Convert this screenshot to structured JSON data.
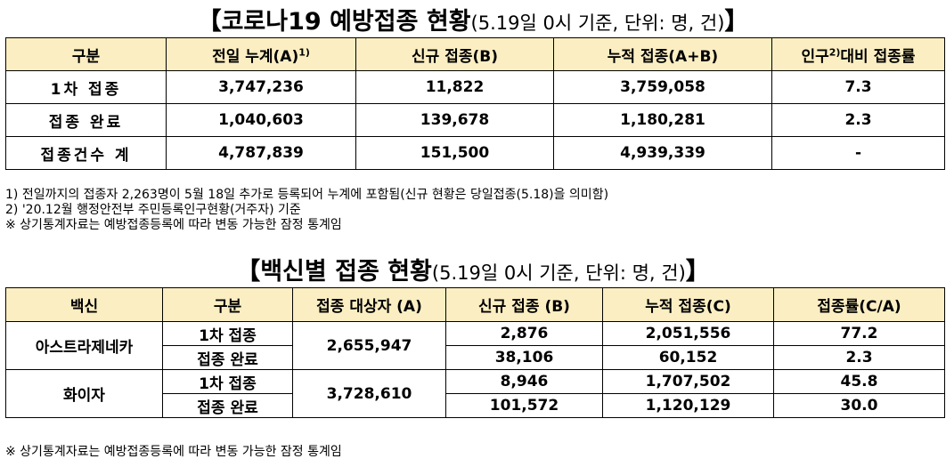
{
  "title1": {
    "main": "【코로나19 예방접종 현황",
    "sub": "(5.19일 0시 기준, 단위: 명, 건)",
    "end": "】"
  },
  "table1": {
    "headers": [
      "구분",
      "전일 누계(A)",
      "1)",
      "신규 접종(B)",
      "누적 접종(A+B)",
      "인구",
      "2)",
      "대비 접종률"
    ],
    "rows": [
      {
        "label": "1차 접종",
        "a": "3,747,236",
        "b": "11,822",
        "ab": "3,759,058",
        "rate": "7.3"
      },
      {
        "label": "접종 완료",
        "a": "1,040,603",
        "b": "139,678",
        "ab": "1,180,281",
        "rate": "2.3"
      },
      {
        "label": "접종건수 계",
        "a": "4,787,839",
        "b": "151,500",
        "ab": "4,939,339",
        "rate": "-"
      }
    ]
  },
  "notes": [
    "1) 전일까지의 접종자 2,263명이 5월 18일 추가로 등록되어 누계에 포함됨(신규 현황은 당일접종(5.18)을 의미함)",
    "2) '20.12월 행정안전부 주민등록인구현황(거주자) 기준",
    "※ 상기통계자료는 예방접종등록에 따라 변동 가능한 잠정 통계임"
  ],
  "title2": {
    "main": "【백신별 접종 현황",
    "sub": "(5.19일 0시 기준, 단위: 명, 건)",
    "end": "】"
  },
  "table2": {
    "headers": [
      "백신",
      "구분",
      "접종 대상자 (A)",
      "신규 접종 (B)",
      "누적 접종(C)",
      "접종률(C/A)"
    ],
    "vaccines": [
      {
        "name": "아스트라제네카",
        "target": "2,655,947",
        "rows": [
          {
            "type": "1차 접종",
            "new": "2,876",
            "cum": "2,051,556",
            "rate": "77.2"
          },
          {
            "type": "접종 완료",
            "new": "38,106",
            "cum": "60,152",
            "rate": "2.3"
          }
        ]
      },
      {
        "name": "화이자",
        "target": "3,728,610",
        "rows": [
          {
            "type": "1차 접종",
            "new": "8,946",
            "cum": "1,707,502",
            "rate": "45.8"
          },
          {
            "type": "접종 완료",
            "new": "101,572",
            "cum": "1,120,129",
            "rate": "30.0"
          }
        ]
      }
    ]
  },
  "footnote": "※ 상기통계자료는 예방접종등록에 따라 변동 가능한 잠정 통계임"
}
